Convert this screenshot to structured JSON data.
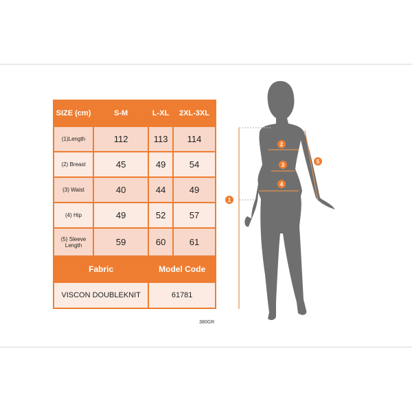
{
  "table": {
    "header": [
      "SIZE (cm)",
      "S-M",
      "L-XL",
      "2XL-3XL"
    ],
    "rows": [
      {
        "label": "(1)Length",
        "values": [
          "112",
          "113",
          "114"
        ]
      },
      {
        "label": "(2) Breast",
        "values": [
          "45",
          "49",
          "54"
        ]
      },
      {
        "label": "(3) Waist",
        "values": [
          "40",
          "44",
          "49"
        ]
      },
      {
        "label": "(4) Hip",
        "values": [
          "49",
          "52",
          "57"
        ]
      },
      {
        "label": "(5) Sleeve Length",
        "values": [
          "59",
          "60",
          "61"
        ]
      }
    ],
    "fabric_label": "Fabric",
    "model_code_label": "Model Code",
    "fabric_value": "VISCON DOUBLEKNIT",
    "model_code_value": "61781"
  },
  "product_code": "380GR",
  "figure": {
    "markers": [
      "1",
      "2",
      "3",
      "4",
      "5"
    ]
  },
  "colors": {
    "accent": "#ee7d31",
    "silhouette": "#6f6f6f",
    "cell_light": "#fcebe3",
    "cell_dark": "#f8d8ca"
  }
}
